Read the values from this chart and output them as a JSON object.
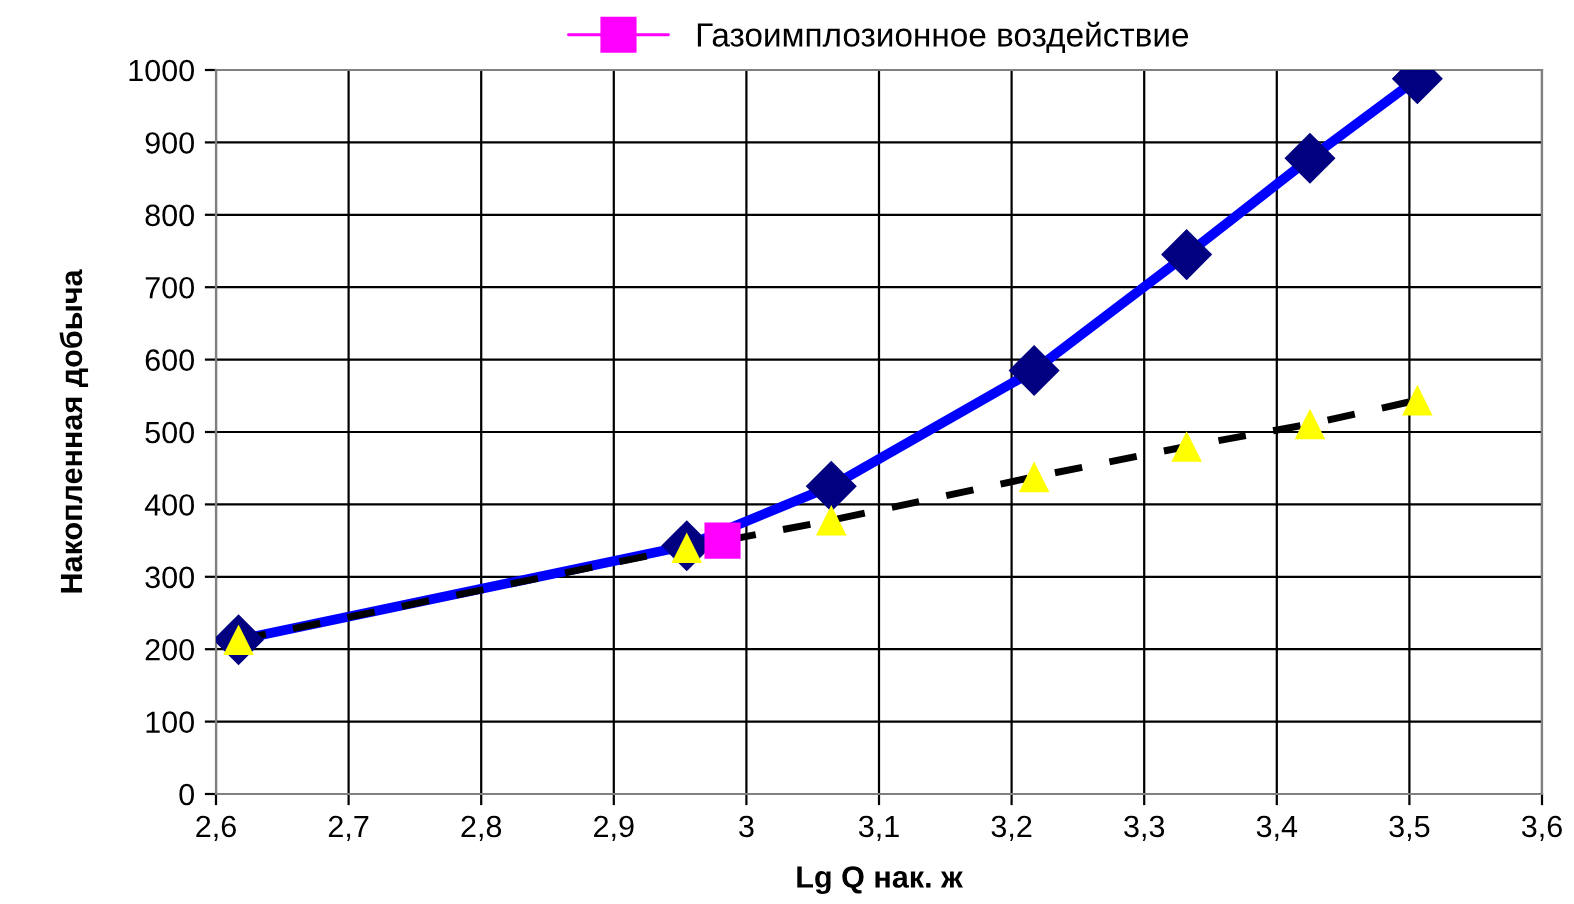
{
  "chart_data": {
    "type": "line",
    "xlabel": "Lg Q нак. ж",
    "ylabel": "Накопленная добыча",
    "xlim": [
      2.6,
      3.6
    ],
    "xticks": [
      {
        "value": 2.6,
        "label": "2,6"
      },
      {
        "value": 2.7,
        "label": "2,7"
      },
      {
        "value": 2.8,
        "label": "2,8"
      },
      {
        "value": 2.9,
        "label": "2,9"
      },
      3,
      {
        "value": 3.1,
        "label": "3,1"
      },
      {
        "value": 3.2,
        "label": "3,2"
      },
      {
        "value": 3.3,
        "label": "3,3"
      },
      {
        "value": 3.4,
        "label": "3,4"
      },
      {
        "value": 3.5,
        "label": "3,5"
      },
      {
        "value": 3.6,
        "label": "3,6"
      }
    ],
    "ylim": [
      0,
      1000
    ],
    "yticks": [
      0,
      100,
      200,
      300,
      400,
      500,
      600,
      700,
      800,
      900,
      1000
    ],
    "grid": true,
    "legend": "top",
    "series": [
      {
        "color": "#0000ff",
        "colors": [
          "#000080",
          "#000080",
          "#000080",
          "#000080",
          "#000080",
          "#000080",
          "#000080"
        ],
        "marker": "diamond",
        "line_style": "solid",
        "x": [
          2.617,
          2.955,
          3.064,
          3.217,
          3.332,
          3.425,
          3.506
        ],
        "values": [
          213,
          343,
          425,
          585,
          745,
          878,
          988
        ]
      },
      {
        "color": "#000000",
        "colors": [
          "#ffff00",
          "#ffff00",
          "#ffff00",
          "#ffff00",
          "#ffff00",
          "#ffff00",
          "#ffff00"
        ],
        "marker": "triangle",
        "line_style": "dashed",
        "x": [
          2.617,
          2.955,
          3.064,
          3.217,
          3.332,
          3.425,
          3.506
        ],
        "values": [
          213,
          340,
          378,
          438,
          480,
          511,
          544
        ]
      },
      {
        "name": "Газоимплозионное воздействие",
        "color": "#ff00ff",
        "marker": "square",
        "line_style": "solid",
        "x": [
          2.982
        ],
        "values": [
          350
        ]
      }
    ]
  }
}
